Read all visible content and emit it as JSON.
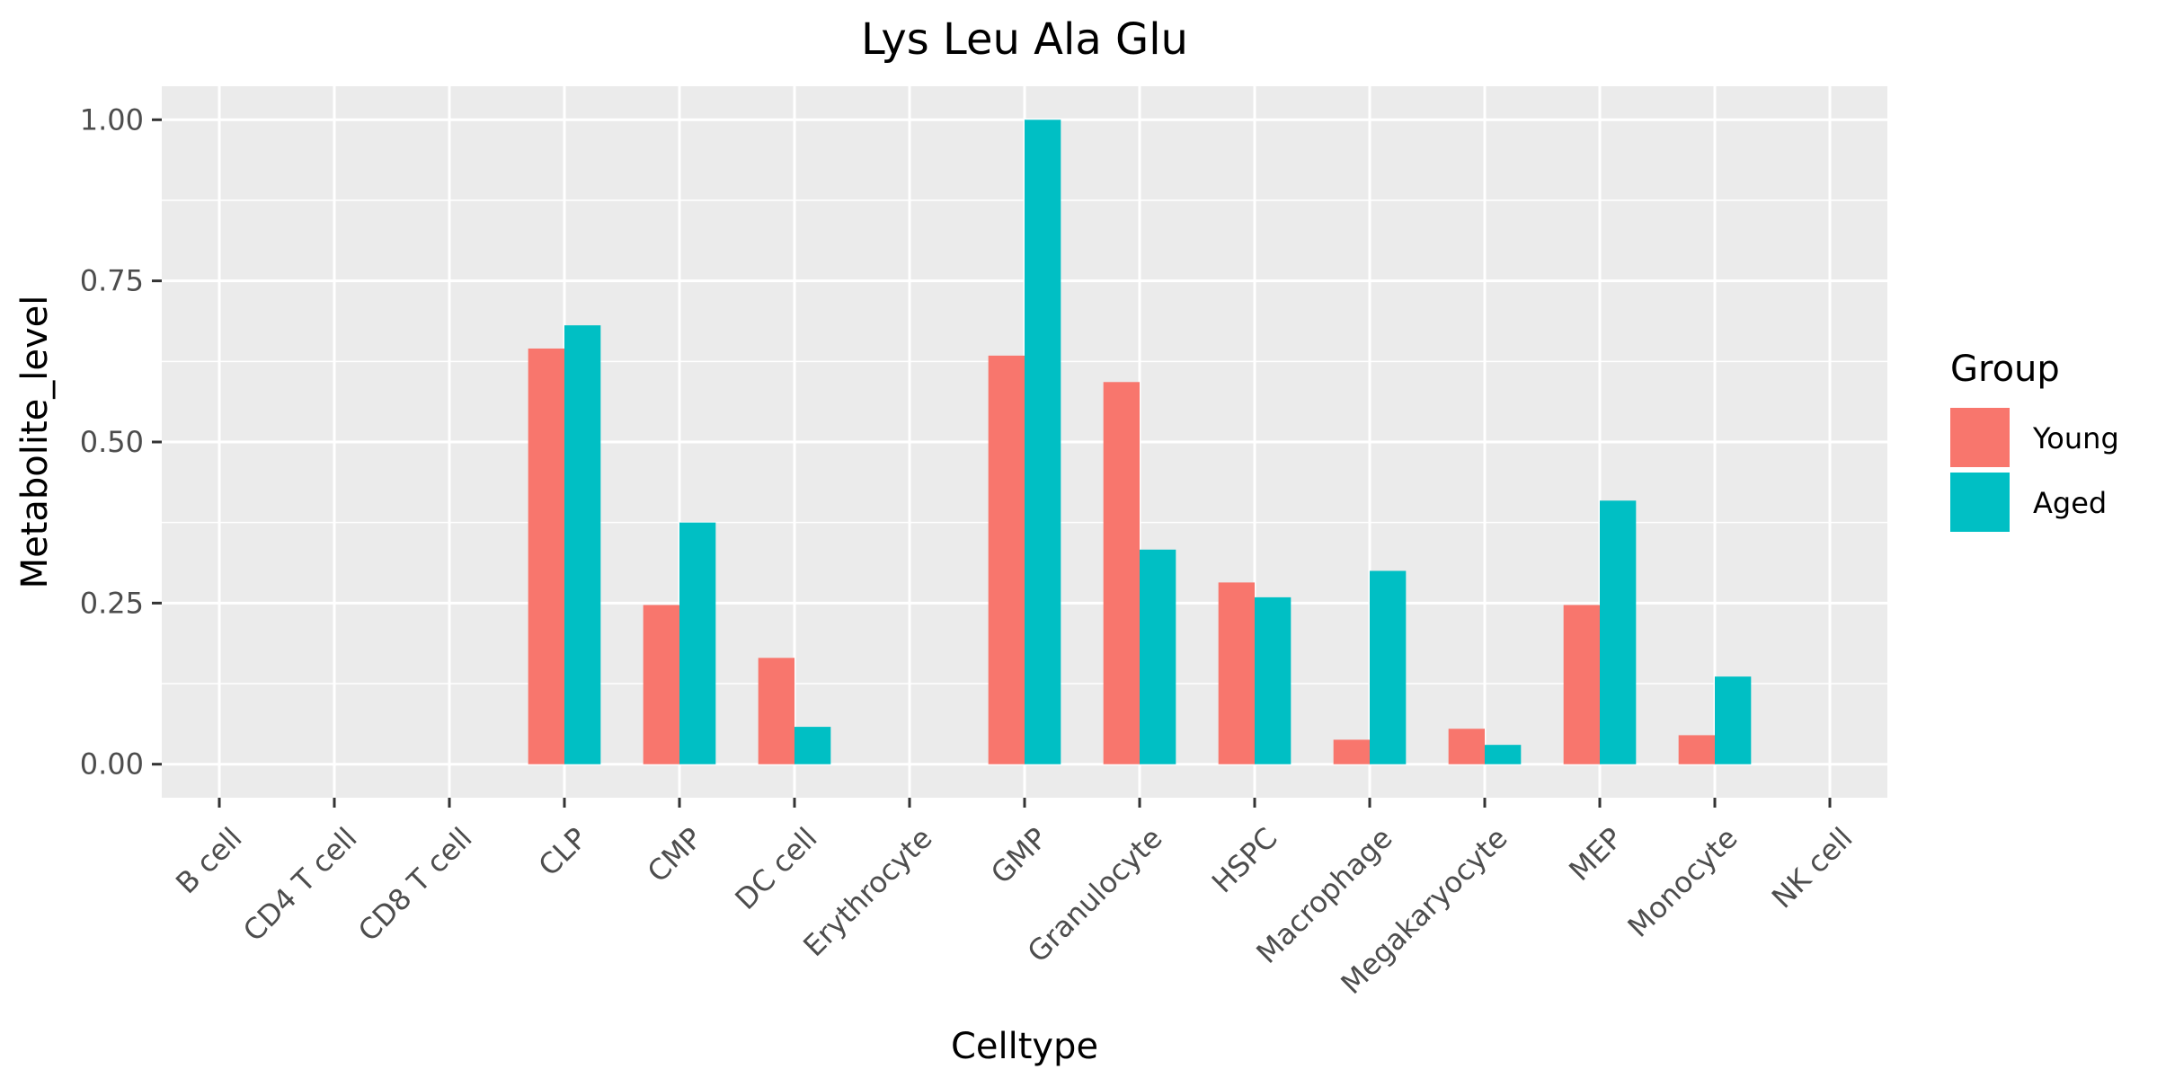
{
  "chart_data": {
    "type": "bar",
    "title": "Lys Leu Ala Glu",
    "xlabel": "Celltype",
    "ylabel": "Metabolite_level",
    "categories": [
      "B cell",
      "CD4 T cell",
      "CD8 T cell",
      "CLP",
      "CMP",
      "DC cell",
      "Erythrocyte",
      "GMP",
      "Granulocyte",
      "HSPC",
      "Macrophage",
      "Megakaryocyte",
      "MEP",
      "Monocyte",
      "NK cell"
    ],
    "series": [
      {
        "name": "Young",
        "color": "#F8766D",
        "values": [
          0,
          0,
          0,
          0.645,
          0.247,
          0.165,
          0,
          0.634,
          0.593,
          0.282,
          0.038,
          0.055,
          0.247,
          0.045,
          0
        ]
      },
      {
        "name": "Aged",
        "color": "#00BFC4",
        "values": [
          0,
          0,
          0,
          0.681,
          0.375,
          0.058,
          0,
          1.0,
          0.333,
          0.259,
          0.3,
          0.03,
          0.409,
          0.136,
          0
        ]
      }
    ],
    "ylim": [
      -0.052,
      1.052
    ],
    "yticks": [
      0,
      0.25,
      0.5,
      0.75,
      1.0
    ],
    "ytick_labels": [
      "0.00",
      "0.25",
      "0.50",
      "0.75",
      "1.00"
    ],
    "grid": true,
    "panel_color": "#EBEBEB",
    "legend": {
      "title": "Group",
      "position": "right"
    }
  }
}
